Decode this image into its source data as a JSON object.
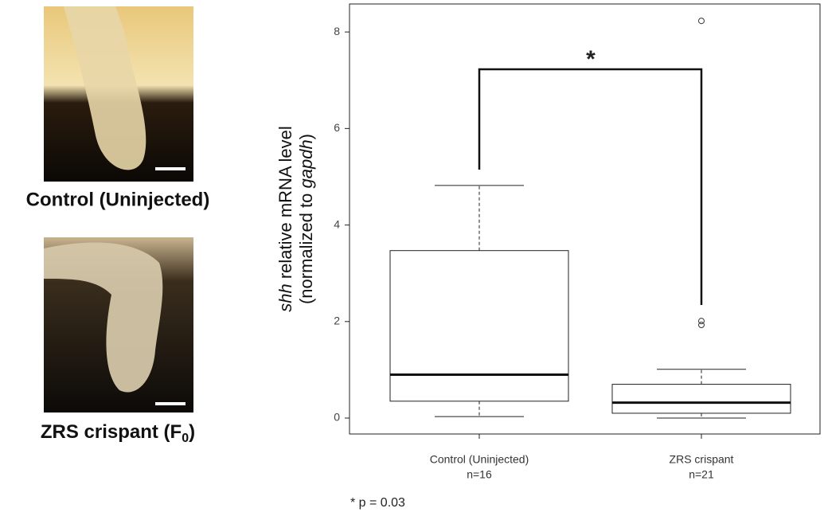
{
  "chart_data": {
    "type": "box",
    "panels": [
      {
        "label": "Control (Uninjected)"
      },
      {
        "label": "ZRS crispant (F",
        "subscript": "0",
        "suffix": ")"
      }
    ],
    "ylabel": [
      [
        {
          "text": "shh",
          "italic": true
        },
        {
          "text": " relative mRNA level",
          "italic": false
        }
      ],
      [
        {
          "text": "(normalized to ",
          "italic": false
        },
        {
          "text": "gapdh",
          "italic": true
        },
        {
          "text": ")",
          "italic": false
        }
      ]
    ],
    "categories": [
      "Control (Uninjected)",
      "ZRS crispant"
    ],
    "n_labels": [
      "n=16",
      "n=21"
    ],
    "boxes": [
      {
        "min": 0.03,
        "q1": 0.35,
        "median": 0.9,
        "q3": 3.47,
        "max": 4.82,
        "outliers": []
      },
      {
        "min": 0.0,
        "q1": 0.1,
        "median": 0.32,
        "q3": 0.7,
        "max": 1.01,
        "outliers": [
          2.01,
          1.93,
          8.23
        ]
      }
    ],
    "ylim": [
      -0.33,
      8.58
    ],
    "yticks": [
      0,
      2,
      4,
      6,
      8
    ],
    "annotation": "*",
    "footnote": "* p = 0.03"
  }
}
